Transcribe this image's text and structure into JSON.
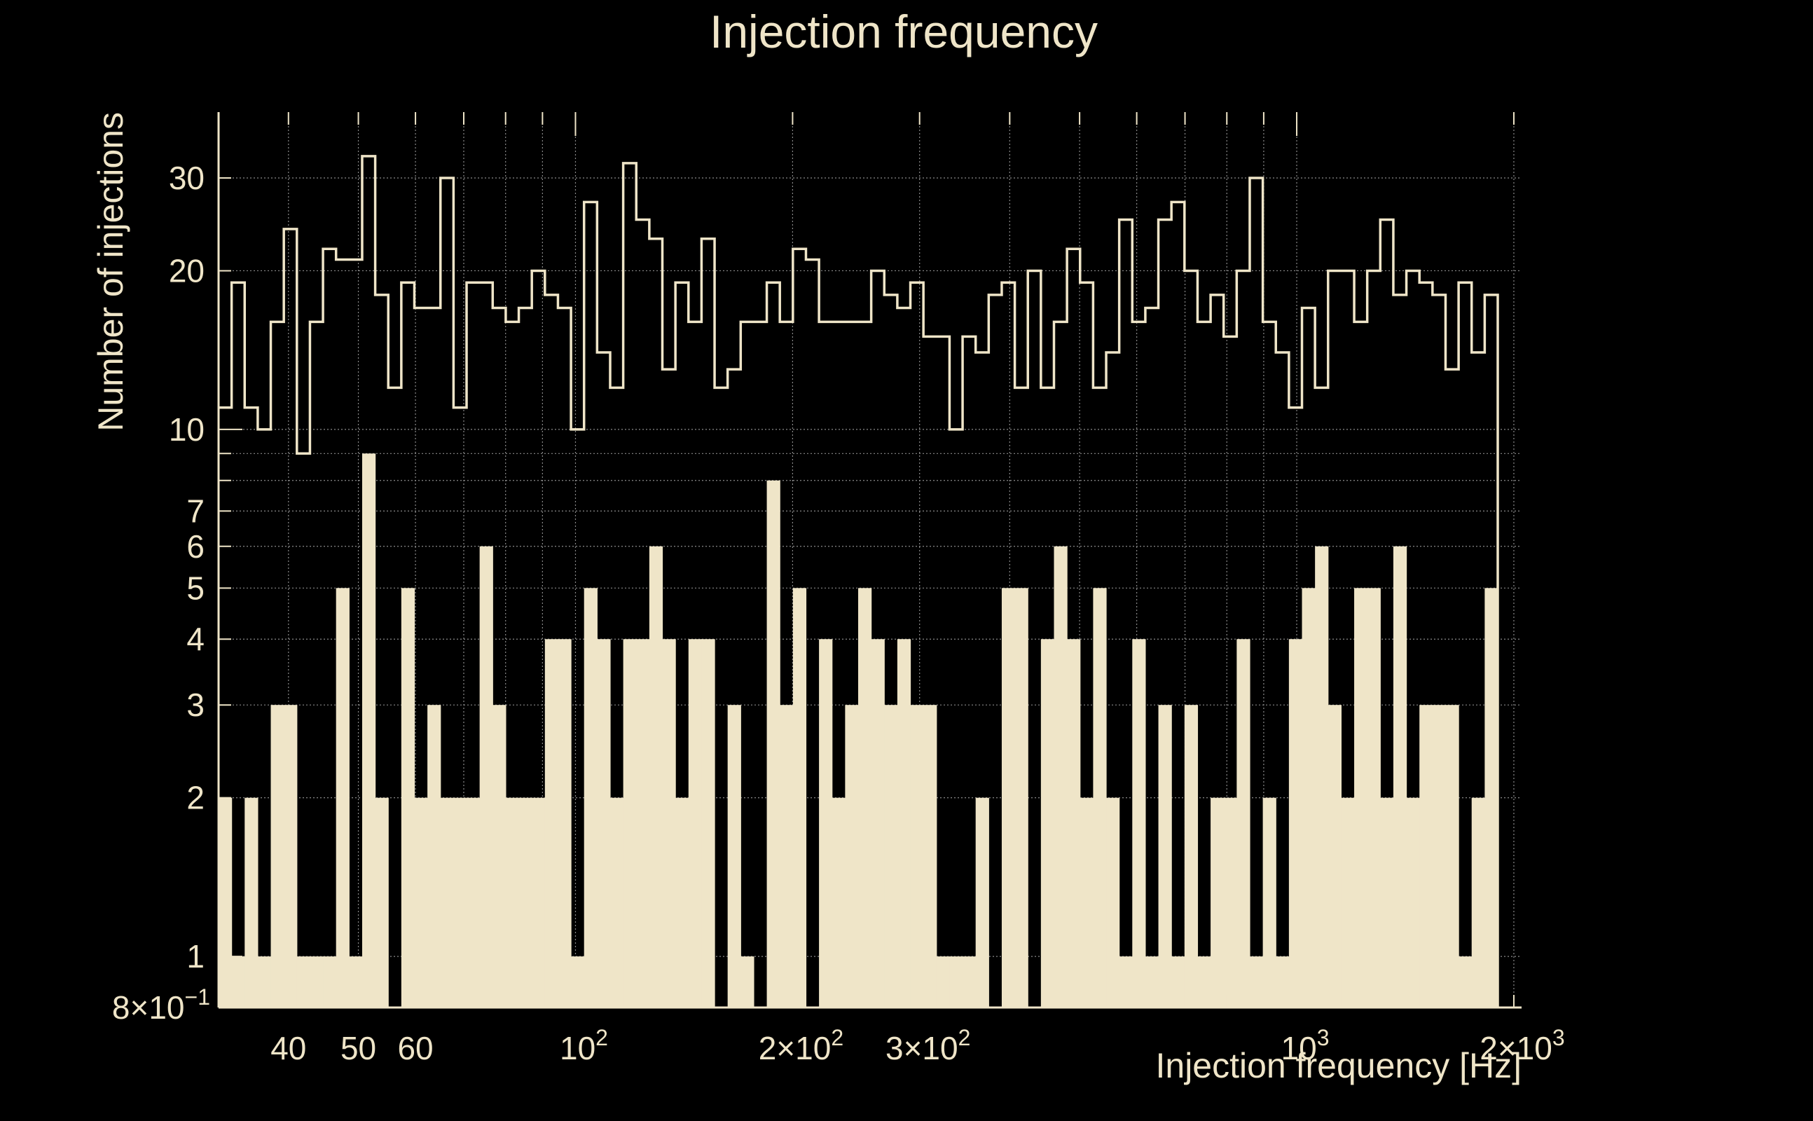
{
  "colors": {
    "background": "#000000",
    "foreground": "#efe5c8",
    "grid": "#8a8a8a"
  },
  "chart_data": {
    "type": "bar",
    "title": "Injection frequency",
    "xlabel": "Injection frequency [Hz]",
    "ylabel": "Number of injections",
    "x_scale": "log",
    "y_scale": "log",
    "xlim": [
      32,
      2050
    ],
    "ylim": [
      0.8,
      40
    ],
    "grid": true,
    "legend": "none",
    "x_ticks": [
      {
        "value": 40,
        "label": "40"
      },
      {
        "value": 50,
        "label": "50"
      },
      {
        "value": 60,
        "label": "60"
      },
      {
        "value": 100,
        "label": "10",
        "sup": "2"
      },
      {
        "value": 200,
        "label": "2×10",
        "sup": "2"
      },
      {
        "value": 300,
        "label": "3×10",
        "sup": "2"
      },
      {
        "value": 1000,
        "label": "10",
        "sup": "3"
      },
      {
        "value": 2000,
        "label": "2×10",
        "sup": "3"
      }
    ],
    "y_ticks": [
      {
        "value": 0.8,
        "label": "8×10",
        "sup": "−1"
      },
      {
        "value": 1,
        "label": "1"
      },
      {
        "value": 2,
        "label": "2"
      },
      {
        "value": 3,
        "label": "3"
      },
      {
        "value": 4,
        "label": "4"
      },
      {
        "value": 5,
        "label": "5"
      },
      {
        "value": 6,
        "label": "6"
      },
      {
        "value": 7,
        "label": "7"
      },
      {
        "value": 10,
        "label": "10"
      },
      {
        "value": 20,
        "label": "20"
      },
      {
        "value": 30,
        "label": "30"
      }
    ],
    "bin_edges_hz_range": [
      32,
      2032
    ],
    "series": [
      {
        "style": "filled",
        "values": [
          2,
          1,
          2,
          1,
          3,
          3,
          1,
          1,
          1,
          5,
          1,
          9,
          2,
          0.8,
          5,
          2,
          3,
          2,
          2,
          2,
          6,
          3,
          2,
          2,
          2,
          4,
          4,
          1,
          5,
          4,
          2,
          4,
          4,
          6,
          4,
          2,
          4,
          4,
          0.8,
          3,
          1,
          0.8,
          8,
          3,
          5,
          0.8,
          4,
          2,
          3,
          5,
          4,
          3,
          4,
          3,
          3,
          1,
          1,
          1,
          2,
          0.8,
          5,
          5,
          0.8,
          4,
          6,
          4,
          2,
          5,
          2,
          1,
          4,
          1,
          3,
          1,
          3,
          1,
          2,
          2,
          4,
          1,
          2,
          1,
          4,
          5,
          6,
          3,
          2,
          5,
          5,
          2,
          6,
          2,
          3,
          3,
          3,
          1,
          2,
          5
        ]
      },
      {
        "style": "step-outline",
        "values": [
          11,
          19,
          11,
          10,
          16,
          24,
          9,
          16,
          22,
          21,
          21,
          33,
          18,
          12,
          19,
          17,
          17,
          30,
          11,
          19,
          19,
          17,
          16,
          17,
          20,
          18,
          17,
          10,
          27,
          14,
          12,
          32,
          25,
          23,
          13,
          19,
          16,
          23,
          12,
          13,
          16,
          16,
          19,
          16,
          22,
          21,
          16,
          16,
          16,
          16,
          20,
          18,
          17,
          19,
          15,
          15,
          10,
          15,
          14,
          18,
          19,
          12,
          20,
          12,
          16,
          22,
          19,
          12,
          14,
          25,
          16,
          17,
          25,
          27,
          20,
          16,
          18,
          15,
          20,
          30,
          16,
          14,
          11,
          17,
          12,
          20,
          20,
          16,
          20,
          25,
          18,
          20,
          19,
          18,
          13,
          19,
          14,
          18
        ]
      }
    ]
  }
}
